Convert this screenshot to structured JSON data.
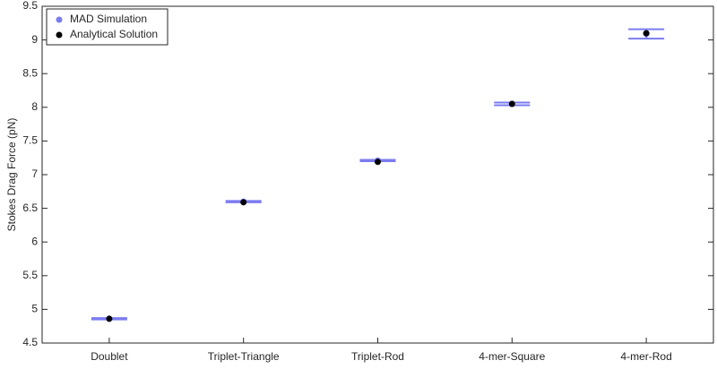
{
  "chart_data": {
    "type": "errorbar",
    "y_label": "Stokes Drag Force (pN)",
    "categories": [
      "Doublet",
      "Triplet-Triangle",
      "Triplet-Rod",
      "4-mer-Square",
      "4-mer-Rod"
    ],
    "series": [
      {
        "name": "MAD Simulation",
        "color": "#7b7bf0",
        "values": [
          4.86,
          6.6,
          7.21,
          8.05,
          9.09
        ],
        "errors": [
          0.01,
          0.01,
          0.01,
          0.02,
          0.07
        ]
      },
      {
        "name": "Analytical Solution",
        "color": "#000000",
        "values": [
          4.86,
          6.59,
          7.19,
          8.05,
          9.1
        ]
      }
    ],
    "ylim": [
      4.5,
      9.5
    ],
    "yticks": [
      4.5,
      5,
      5.5,
      6,
      6.5,
      7,
      7.5,
      8,
      8.5,
      9,
      9.5
    ],
    "legend": "upper left"
  }
}
